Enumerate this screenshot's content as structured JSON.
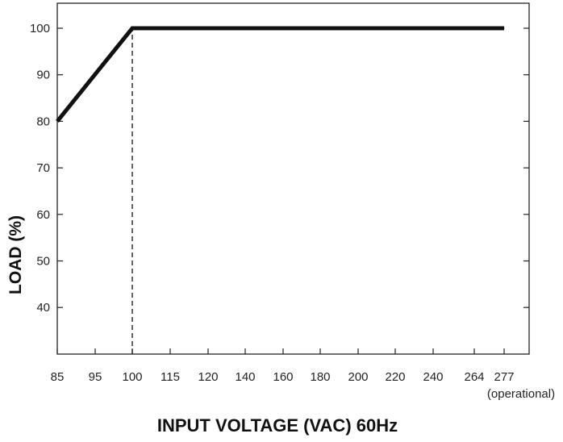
{
  "chart_data": {
    "type": "line",
    "title": "",
    "xlabel": "INPUT VOLTAGE (VAC) 60Hz",
    "ylabel": "LOAD (%)",
    "x_categories": [
      "85",
      "95",
      "100",
      "115",
      "120",
      "140",
      "160",
      "180",
      "200",
      "220",
      "240",
      "264",
      "277"
    ],
    "x_note": "(operational)",
    "y_ticks": [
      40,
      50,
      60,
      70,
      80,
      90,
      100
    ],
    "ylim": [
      30,
      104
    ],
    "grid": false,
    "series": [
      {
        "points": [
          {
            "x": "85",
            "y": 80
          },
          {
            "x": "100",
            "y": 100
          },
          {
            "x": "277",
            "y": 100
          }
        ]
      }
    ],
    "reference_line": {
      "x": "100",
      "style": "dashed",
      "from_y": 30,
      "to_y": 100
    },
    "colors": {
      "line": "#111111",
      "axis": "#222222"
    }
  }
}
